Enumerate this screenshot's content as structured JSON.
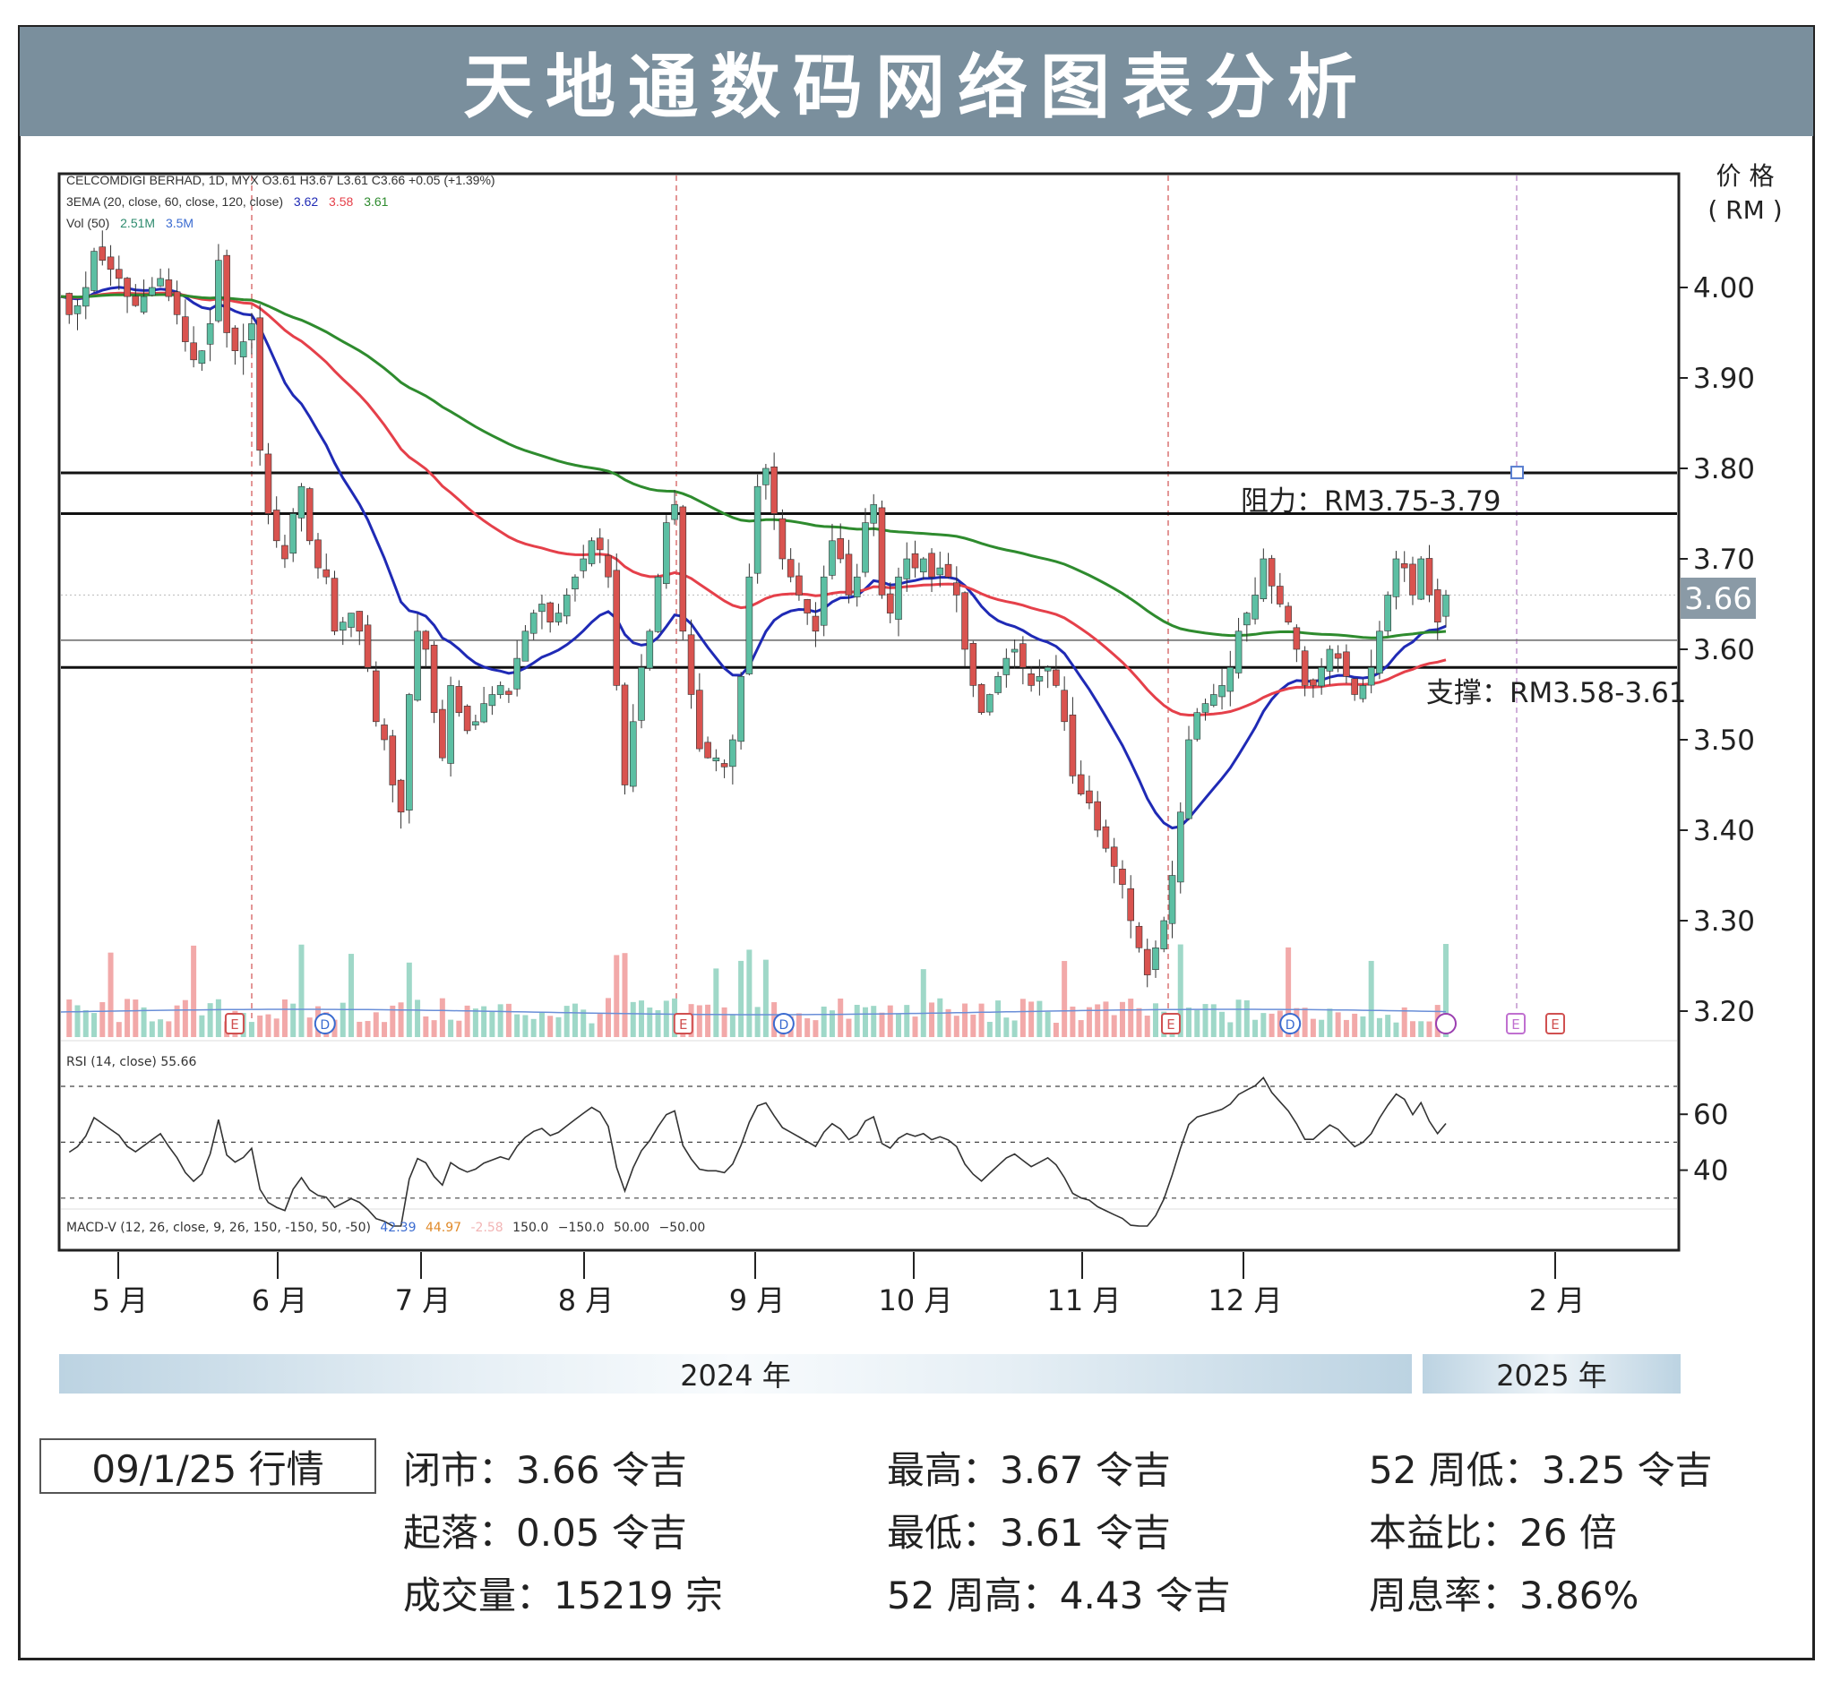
{
  "title": "天地通数码网络图表分析",
  "chart_data": {
    "type": "candlestick",
    "legend": {
      "line1": "CELCOMDIGI BERHAD, 1D, MYX O3.61 H3.67 L3.61 C3.66 +0.05 (+1.39%)",
      "line2_label": "3EMA (20, close, 60, close, 120, close)",
      "ema_values": [
        "3.62",
        "3.58",
        "3.61"
      ],
      "line3_label": "Vol (50)",
      "vol_values": [
        "2.51M",
        "3.5M"
      ]
    },
    "y_axis": {
      "title_line1": "价 格",
      "title_line2": "( RM )",
      "ticks": [
        "4.00",
        "3.90",
        "3.80",
        "3.70",
        "3.60",
        "3.50",
        "3.40",
        "3.30",
        "3.20"
      ],
      "ylim": [
        3.155,
        4.125
      ]
    },
    "last_price_label": "3.66",
    "x_axis": {
      "months": [
        "5 月",
        "6 月",
        "7 月",
        "8 月",
        "9 月",
        "10 月",
        "11 月",
        "12 月",
        "2 月"
      ]
    },
    "years": [
      "2024 年",
      "2025 年"
    ],
    "resistance": {
      "label": "阻力：RM3.75-3.79",
      "levels": [
        3.75,
        3.795
      ]
    },
    "support": {
      "label": "支撑：RM3.58-3.61",
      "levels": [
        3.58,
        3.61
      ]
    },
    "price_path": [
      3.99,
      3.97,
      3.98,
      4.0,
      4.04,
      4.03,
      4.02,
      4.01,
      3.99,
      3.98,
      3.99,
      4.0,
      4.01,
      3.99,
      3.97,
      3.94,
      3.92,
      3.93,
      3.96,
      4.03,
      3.95,
      3.93,
      3.94,
      3.96,
      3.82,
      3.75,
      3.72,
      3.7,
      3.75,
      3.78,
      3.72,
      3.69,
      3.68,
      3.62,
      3.63,
      3.64,
      3.62,
      3.58,
      3.52,
      3.5,
      3.45,
      3.42,
      3.55,
      3.62,
      3.6,
      3.53,
      3.48,
      3.56,
      3.53,
      3.51,
      3.52,
      3.54,
      3.55,
      3.56,
      3.55,
      3.59,
      3.62,
      3.64,
      3.65,
      3.63,
      3.64,
      3.66,
      3.68,
      3.7,
      3.72,
      3.71,
      3.68,
      3.56,
      3.45,
      3.52,
      3.58,
      3.62,
      3.68,
      3.74,
      3.76,
      3.62,
      3.55,
      3.49,
      3.48,
      3.48,
      3.47,
      3.5,
      3.57,
      3.68,
      3.78,
      3.8,
      3.75,
      3.7,
      3.68,
      3.66,
      3.64,
      3.62,
      3.68,
      3.72,
      3.7,
      3.66,
      3.68,
      3.74,
      3.76,
      3.66,
      3.64,
      3.68,
      3.7,
      3.69,
      3.7,
      3.68,
      3.69,
      3.68,
      3.66,
      3.6,
      3.56,
      3.53,
      3.55,
      3.57,
      3.59,
      3.6,
      3.58,
      3.56,
      3.57,
      3.58,
      3.56,
      3.52,
      3.46,
      3.44,
      3.43,
      3.4,
      3.38,
      3.36,
      3.34,
      3.3,
      3.27,
      3.24,
      3.27,
      3.3,
      3.35,
      3.42,
      3.5,
      3.53,
      3.54,
      3.55,
      3.56,
      3.58,
      3.62,
      3.64,
      3.66,
      3.7,
      3.67,
      3.65,
      3.63,
      3.6,
      3.56,
      3.56,
      3.58,
      3.6,
      3.59,
      3.57,
      3.55,
      3.56,
      3.58,
      3.62,
      3.66,
      3.7,
      3.69,
      3.66,
      3.7,
      3.66,
      3.63,
      3.66
    ],
    "ema20_label": "EMA 20 (blue)",
    "ema60_label": "EMA 60 (red)",
    "ema120_label": "EMA 120 (green)",
    "event_markers": [
      {
        "type": "E",
        "month_pos": 0.73
      },
      {
        "type": "D",
        "month_pos": 1.33
      },
      {
        "type": "E",
        "month_pos": 3.58
      },
      {
        "type": "D",
        "month_pos": 4.18
      },
      {
        "type": "E",
        "month_pos": 6.55
      },
      {
        "type": "D",
        "month_pos": 7.15
      },
      {
        "type": "E",
        "month_pos": 8.78
      }
    ],
    "rsi": {
      "label": "RSI (14, close) 55.66",
      "ticks": [
        "60",
        "40"
      ],
      "levels": [
        70,
        50,
        30
      ],
      "ylim": [
        18,
        77
      ]
    },
    "macd": {
      "label": "MACD-V (12, 26, close, 9, 26, 150, -150, 50, -50)",
      "values": [
        "42.39",
        "44.97",
        "-2.58",
        "150.0",
        "−150.0",
        "50.00",
        "−50.00"
      ]
    }
  },
  "session": {
    "date_label": "09/1/25 行情",
    "stats": [
      {
        "label": "闭市：",
        "value": "3.66 令吉"
      },
      {
        "label": "起落：",
        "value": "0.05 令吉"
      },
      {
        "label": "成交量：",
        "value": "15219 宗"
      },
      {
        "label": "最高：",
        "value": "3.67 令吉"
      },
      {
        "label": "最低：",
        "value": "3.61 令吉"
      },
      {
        "label": "52 周高：",
        "value": "4.43 令吉"
      },
      {
        "label": "52 周低：",
        "value": "3.25 令吉"
      },
      {
        "label": "本益比：",
        "value": "26 倍"
      },
      {
        "label": "周息率：",
        "value": "3.86%"
      }
    ]
  },
  "colors": {
    "up": "#5cbfa3",
    "down": "#d9534f",
    "ema20": "#1f2ab5",
    "ema60": "#e5404a",
    "ema120": "#2e8b2e",
    "title_bg": "#7a8f9d",
    "price_tag": "#8a9aa6",
    "rsi_line": "#333333"
  }
}
